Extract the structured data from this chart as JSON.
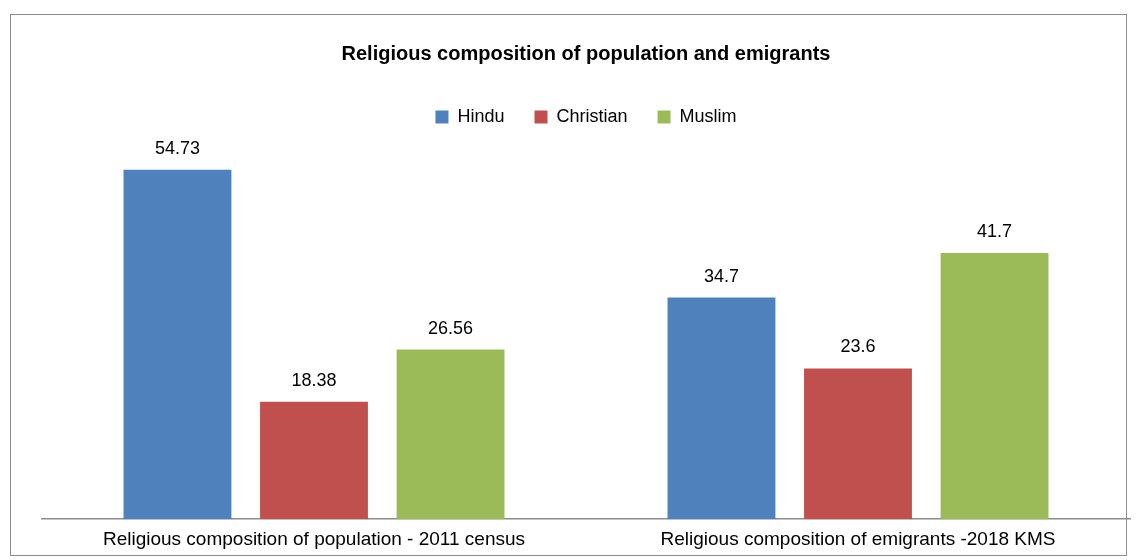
{
  "chart_data": {
    "type": "bar",
    "title": "Religious composition of population and emigrants",
    "categories": [
      "Religious composition of population - 2011 census",
      "Religious composition of emigrants -2018 KMS"
    ],
    "series": [
      {
        "name": "Hindu",
        "color": "#4f81bd",
        "values": [
          54.73,
          34.7
        ]
      },
      {
        "name": "Christian",
        "color": "#c0504d",
        "values": [
          18.38,
          23.6
        ]
      },
      {
        "name": "Muslim",
        "color": "#9bbb59",
        "values": [
          26.56,
          41.7
        ]
      }
    ],
    "data_labels": true,
    "legend": "top",
    "tick_labels": "x"
  }
}
